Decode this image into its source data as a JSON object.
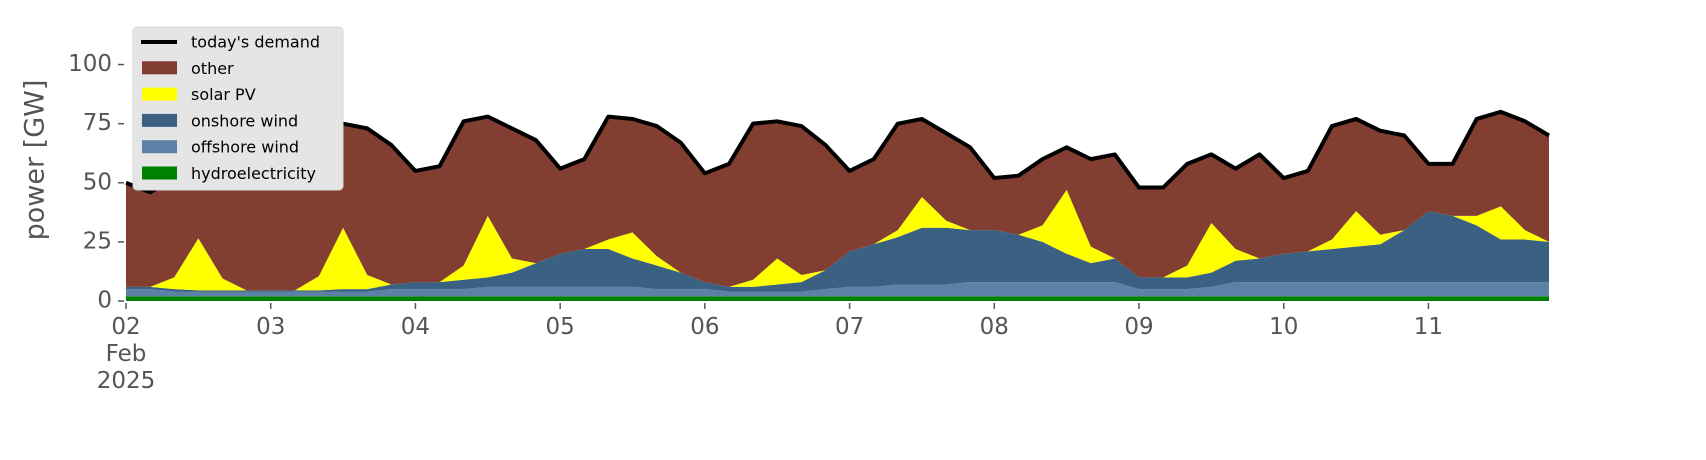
{
  "chart_data": {
    "type": "area",
    "ylabel": "power [GW]",
    "x": [
      0,
      0.167,
      0.333,
      0.5,
      0.667,
      0.833,
      1,
      1.167,
      1.333,
      1.5,
      1.667,
      1.833,
      2,
      2.167,
      2.333,
      2.5,
      2.667,
      2.833,
      3,
      3.167,
      3.333,
      3.5,
      3.667,
      3.833,
      4,
      4.167,
      4.333,
      4.5,
      4.667,
      4.833,
      5,
      5.167,
      5.333,
      5.5,
      5.667,
      5.833,
      6,
      6.167,
      6.333,
      6.5,
      6.667,
      6.833,
      7,
      7.167,
      7.333,
      7.5,
      7.667,
      7.833,
      8,
      8.167,
      8.333,
      8.5,
      8.667,
      8.833,
      9,
      9.167,
      9.333,
      9.5,
      9.667,
      9.833
    ],
    "xlim": [
      0,
      9.833
    ],
    "xticks": [
      {
        "value": 0,
        "label": "02\nFeb\n2025"
      },
      {
        "value": 1,
        "label": "03"
      },
      {
        "value": 2,
        "label": "04"
      },
      {
        "value": 3,
        "label": "05"
      },
      {
        "value": 4,
        "label": "06"
      },
      {
        "value": 5,
        "label": "07"
      },
      {
        "value": 6,
        "label": "08"
      },
      {
        "value": 7,
        "label": "09"
      },
      {
        "value": 8,
        "label": "10"
      },
      {
        "value": 9,
        "label": "11"
      }
    ],
    "ylim": [
      0,
      118
    ],
    "yticks": [
      0,
      25,
      50,
      75,
      100
    ],
    "grid": false,
    "legend": "upper left",
    "series": [
      {
        "name": "today's demand",
        "kind": "line",
        "color": "#000000",
        "values": [
          50,
          46,
          52,
          59,
          56,
          60,
          56,
          62,
          76,
          75,
          73,
          66,
          55,
          57,
          76,
          78,
          73,
          68,
          56,
          60,
          78,
          77,
          74,
          67,
          54,
          58,
          75,
          76,
          74,
          66,
          55,
          60,
          75,
          77,
          71,
          65,
          52,
          53,
          60,
          65,
          60,
          62,
          48,
          48,
          58,
          62,
          56,
          62,
          52,
          55,
          74,
          77,
          72,
          70,
          58,
          58,
          77,
          80,
          76,
          70
        ]
      },
      {
        "name": "other",
        "kind": "area",
        "color": "#823f31",
        "values": [
          44,
          40,
          42,
          32.5,
          46.5,
          55.5,
          51.5,
          57.5,
          65.5,
          44,
          62,
          59,
          47,
          49,
          61,
          42,
          55,
          52,
          36,
          38,
          52,
          48,
          55,
          55,
          46,
          52,
          66,
          58,
          63,
          53,
          34,
          36,
          45,
          33,
          37,
          35,
          22,
          25,
          28,
          18,
          37,
          44,
          38,
          38,
          43,
          29,
          34,
          44,
          32,
          34,
          48,
          39,
          44,
          40,
          20,
          22,
          41,
          40,
          46,
          45
        ]
      },
      {
        "name": "solar PV",
        "kind": "area",
        "color": "#ffff00",
        "values": [
          0,
          0,
          5,
          22,
          5,
          0,
          0,
          0,
          6,
          26,
          6,
          0,
          0,
          0,
          6,
          26,
          6,
          0,
          0,
          0,
          4,
          11,
          4,
          0,
          0,
          0,
          3,
          11,
          3,
          0,
          0,
          0,
          3,
          13,
          3,
          0,
          0,
          0,
          7,
          27,
          7,
          0,
          0,
          0,
          5,
          21,
          5,
          0,
          0,
          0,
          4,
          15,
          4,
          0,
          0,
          0,
          4,
          14,
          4,
          0
        ]
      },
      {
        "name": "onshore wind",
        "kind": "area",
        "color": "#3b6182",
        "values": [
          1,
          1,
          1,
          0.5,
          0.5,
          0.5,
          0.5,
          0.5,
          0.5,
          1,
          1,
          2,
          3,
          3,
          4,
          4,
          6,
          10,
          14,
          16,
          16,
          12,
          10,
          7,
          3,
          2,
          2,
          3,
          4,
          8,
          15,
          18,
          20,
          24,
          24,
          22,
          22,
          20,
          17,
          12,
          8,
          10,
          5,
          5,
          5,
          6,
          9,
          10,
          12,
          13,
          14,
          15,
          16,
          22,
          30,
          28,
          24,
          18,
          18,
          17
        ]
      },
      {
        "name": "offshore wind",
        "kind": "area",
        "color": "#5b82a6",
        "values": [
          3,
          3,
          2,
          2,
          2,
          2,
          2,
          2,
          2,
          2,
          2,
          3,
          3,
          3,
          3,
          4,
          4,
          4,
          4,
          4,
          4,
          4,
          3,
          3,
          3,
          2,
          2,
          2,
          2,
          3,
          4,
          4,
          5,
          5,
          5,
          6,
          6,
          6,
          6,
          6,
          6,
          6,
          3,
          3,
          3,
          4,
          6,
          6,
          6,
          6,
          6,
          6,
          6,
          6,
          6,
          6,
          6,
          6,
          6,
          6
        ]
      },
      {
        "name": "hydroelectricity",
        "kind": "area",
        "color": "#008000",
        "values": [
          2,
          2,
          2,
          2,
          2,
          2,
          2,
          2,
          2,
          2,
          2,
          2,
          2,
          2,
          2,
          2,
          2,
          2,
          2,
          2,
          2,
          2,
          2,
          2,
          2,
          2,
          2,
          2,
          2,
          2,
          2,
          2,
          2,
          2,
          2,
          2,
          2,
          2,
          2,
          2,
          2,
          2,
          2,
          2,
          2,
          2,
          2,
          2,
          2,
          2,
          2,
          2,
          2,
          2,
          2,
          2,
          2,
          2,
          2,
          2
        ]
      }
    ]
  }
}
